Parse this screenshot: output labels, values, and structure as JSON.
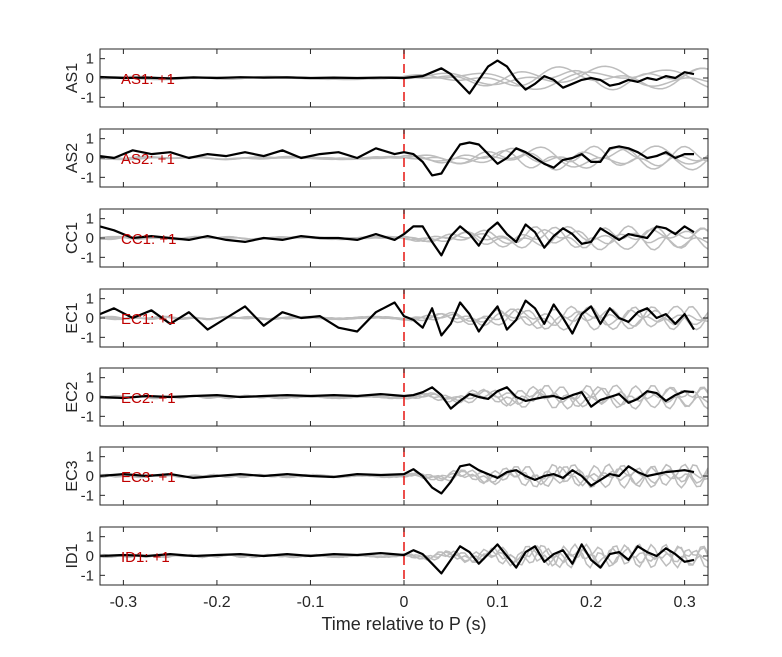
{
  "chart_data": {
    "type": "line",
    "xlabel": "Time relative to P (s)",
    "xlim": [
      -0.325,
      0.325
    ],
    "ylim": [
      -1.5,
      1.5
    ],
    "xticks": [
      -0.3,
      -0.2,
      -0.1,
      0,
      0.1,
      0.2,
      0.3
    ],
    "xtick_labels": [
      "-0.3",
      "-0.2",
      "-0.1",
      "0",
      "0.1",
      "0.2",
      "0.3"
    ],
    "yticks": [
      1,
      0,
      -1
    ],
    "ytick_labels": [
      "1",
      "0",
      "-1"
    ],
    "reference_line": {
      "x": 0,
      "style": "dashed",
      "color": "#e8231f"
    },
    "colors": {
      "main_trace": "#000000",
      "reference_traces": "#bdbdbd",
      "annotation": "#c00000",
      "p_marker": "#e8231f"
    },
    "panels": [
      {
        "ylabel": "AS1",
        "annotation": "AS1: +1",
        "x": [
          -0.325,
          -0.3,
          -0.275,
          -0.25,
          -0.225,
          -0.2,
          -0.175,
          -0.15,
          -0.125,
          -0.1,
          -0.075,
          -0.05,
          -0.025,
          0,
          0.01,
          0.02,
          0.03,
          0.04,
          0.05,
          0.06,
          0.07,
          0.08,
          0.09,
          0.1,
          0.11,
          0.12,
          0.13,
          0.14,
          0.15,
          0.16,
          0.17,
          0.18,
          0.19,
          0.2,
          0.21,
          0.22,
          0.23,
          0.24,
          0.25,
          0.26,
          0.27,
          0.28,
          0.29,
          0.3,
          0.31
        ],
        "y": [
          0.05,
          0.0,
          0.02,
          -0.02,
          0.03,
          0.0,
          0.04,
          0.02,
          0.03,
          0.0,
          0.02,
          0.0,
          0.02,
          0.0,
          0.05,
          0.1,
          0.3,
          0.5,
          0.2,
          -0.3,
          -0.8,
          -0.1,
          0.6,
          0.9,
          0.6,
          -0.1,
          -0.6,
          -0.3,
          0.1,
          -0.1,
          -0.5,
          -0.3,
          -0.1,
          0.0,
          -0.1,
          -0.4,
          -0.3,
          -0.1,
          -0.2,
          0.0,
          -0.1,
          0.1,
          0.0,
          0.3,
          0.2
        ]
      },
      {
        "ylabel": "AS2",
        "annotation": "AS2: +1",
        "x": [
          -0.325,
          -0.31,
          -0.29,
          -0.27,
          -0.25,
          -0.23,
          -0.21,
          -0.19,
          -0.17,
          -0.15,
          -0.13,
          -0.11,
          -0.09,
          -0.07,
          -0.05,
          -0.03,
          -0.01,
          0.0,
          0.01,
          0.02,
          0.03,
          0.04,
          0.05,
          0.06,
          0.07,
          0.08,
          0.09,
          0.1,
          0.11,
          0.12,
          0.13,
          0.14,
          0.15,
          0.16,
          0.17,
          0.18,
          0.19,
          0.2,
          0.21,
          0.22,
          0.23,
          0.24,
          0.25,
          0.26,
          0.27,
          0.28,
          0.29,
          0.3,
          0.31
        ],
        "y": [
          0.1,
          0.0,
          0.4,
          0.2,
          0.3,
          0.0,
          0.2,
          0.1,
          0.3,
          0.1,
          0.4,
          0.0,
          0.2,
          0.3,
          0.0,
          0.5,
          0.2,
          0.3,
          0.2,
          -0.2,
          -0.9,
          -0.8,
          0.0,
          0.7,
          0.8,
          0.7,
          0.2,
          -0.3,
          0.0,
          0.5,
          0.3,
          0.0,
          -0.3,
          -0.5,
          -0.1,
          0.0,
          0.2,
          -0.2,
          -0.2,
          0.5,
          0.6,
          0.5,
          0.3,
          0.0,
          0.1,
          0.3,
          0.0,
          0.2,
          0.2
        ]
      },
      {
        "ylabel": "CC1",
        "annotation": "CC1: +1",
        "x": [
          -0.325,
          -0.31,
          -0.29,
          -0.27,
          -0.25,
          -0.23,
          -0.21,
          -0.19,
          -0.17,
          -0.15,
          -0.13,
          -0.11,
          -0.09,
          -0.07,
          -0.05,
          -0.03,
          -0.01,
          0.0,
          0.01,
          0.02,
          0.03,
          0.04,
          0.05,
          0.06,
          0.07,
          0.08,
          0.09,
          0.1,
          0.11,
          0.12,
          0.13,
          0.14,
          0.15,
          0.16,
          0.17,
          0.18,
          0.19,
          0.2,
          0.21,
          0.22,
          0.23,
          0.24,
          0.25,
          0.26,
          0.27,
          0.28,
          0.29,
          0.3,
          0.31
        ],
        "y": [
          0.6,
          0.4,
          0.0,
          0.1,
          0.0,
          -0.1,
          0.1,
          -0.1,
          -0.2,
          0.0,
          -0.1,
          0.1,
          0.0,
          0.0,
          -0.1,
          0.2,
          -0.1,
          0.2,
          0.6,
          0.6,
          -0.2,
          -0.9,
          0.1,
          0.6,
          0.2,
          -0.4,
          0.4,
          0.8,
          0.2,
          -0.2,
          0.7,
          0.3,
          -0.5,
          0.1,
          0.5,
          0.2,
          -0.3,
          -0.2,
          0.5,
          0.2,
          -0.1,
          0.2,
          0.1,
          0.0,
          0.6,
          0.5,
          0.2,
          0.6,
          0.3
        ]
      },
      {
        "ylabel": "EC1",
        "annotation": "EC1: +1",
        "x": [
          -0.325,
          -0.31,
          -0.29,
          -0.27,
          -0.25,
          -0.23,
          -0.21,
          -0.19,
          -0.17,
          -0.15,
          -0.13,
          -0.11,
          -0.09,
          -0.07,
          -0.05,
          -0.03,
          -0.01,
          0.0,
          0.01,
          0.02,
          0.03,
          0.04,
          0.05,
          0.06,
          0.07,
          0.08,
          0.09,
          0.1,
          0.11,
          0.12,
          0.13,
          0.14,
          0.15,
          0.16,
          0.17,
          0.18,
          0.19,
          0.2,
          0.21,
          0.22,
          0.23,
          0.24,
          0.25,
          0.26,
          0.27,
          0.28,
          0.29,
          0.3,
          0.31
        ],
        "y": [
          0.2,
          0.5,
          0.0,
          0.4,
          -0.3,
          0.3,
          -0.6,
          0.0,
          0.6,
          -0.4,
          0.3,
          0.0,
          0.1,
          -0.5,
          -0.7,
          0.3,
          0.8,
          0.1,
          -0.1,
          -0.5,
          0.5,
          -0.9,
          -0.3,
          0.8,
          0.2,
          -0.7,
          0.0,
          0.6,
          -0.6,
          -0.1,
          0.9,
          0.5,
          -0.3,
          0.7,
          0.0,
          -0.8,
          0.2,
          0.6,
          -0.3,
          0.5,
          0.0,
          -0.2,
          0.3,
          0.5,
          0.0,
          0.2,
          -0.3,
          0.2,
          -0.6
        ]
      },
      {
        "ylabel": "EC2",
        "annotation": "EC2: +1",
        "x": [
          -0.325,
          -0.3,
          -0.275,
          -0.25,
          -0.225,
          -0.2,
          -0.175,
          -0.15,
          -0.125,
          -0.1,
          -0.075,
          -0.05,
          -0.025,
          0,
          0.01,
          0.02,
          0.03,
          0.04,
          0.05,
          0.06,
          0.07,
          0.08,
          0.09,
          0.1,
          0.11,
          0.12,
          0.13,
          0.14,
          0.15,
          0.16,
          0.17,
          0.18,
          0.19,
          0.2,
          0.21,
          0.22,
          0.23,
          0.24,
          0.25,
          0.26,
          0.27,
          0.28,
          0.29,
          0.3,
          0.31
        ],
        "y": [
          0.0,
          -0.05,
          0.05,
          0.0,
          0.05,
          0.1,
          0.0,
          0.05,
          0.1,
          0.05,
          0.1,
          0.05,
          0.15,
          0.05,
          0.1,
          0.25,
          0.5,
          0.1,
          -0.6,
          -0.2,
          0.15,
          0.0,
          -0.1,
          0.3,
          0.5,
          0.0,
          -0.2,
          -0.1,
          0.0,
          0.05,
          -0.1,
          0.1,
          0.25,
          -0.5,
          -0.15,
          0.0,
          0.15,
          -0.3,
          -0.1,
          0.3,
          0.2,
          -0.2,
          0.1,
          0.3,
          0.25
        ]
      },
      {
        "ylabel": "EC3",
        "annotation": "EC3: +1",
        "x": [
          -0.325,
          -0.3,
          -0.275,
          -0.25,
          -0.225,
          -0.2,
          -0.175,
          -0.15,
          -0.125,
          -0.1,
          -0.075,
          -0.05,
          -0.025,
          0,
          0.01,
          0.02,
          0.03,
          0.04,
          0.05,
          0.06,
          0.07,
          0.08,
          0.09,
          0.1,
          0.11,
          0.12,
          0.13,
          0.14,
          0.15,
          0.16,
          0.17,
          0.18,
          0.19,
          0.2,
          0.21,
          0.22,
          0.23,
          0.24,
          0.25,
          0.26,
          0.27,
          0.28,
          0.29,
          0.3,
          0.31
        ],
        "y": [
          0.0,
          0.1,
          0.0,
          0.1,
          -0.1,
          0.0,
          0.1,
          0.0,
          0.1,
          0.0,
          -0.05,
          0.1,
          0.05,
          0.1,
          0.35,
          0.0,
          -0.6,
          -0.9,
          -0.3,
          0.5,
          0.6,
          0.3,
          0.1,
          -0.1,
          0.2,
          0.3,
          0.0,
          -0.2,
          0.0,
          0.1,
          -0.1,
          0.3,
          0.0,
          -0.5,
          -0.2,
          0.1,
          0.0,
          0.5,
          0.2,
          0.0,
          0.1,
          0.2,
          0.25,
          0.3,
          0.2
        ]
      },
      {
        "ylabel": "ID1",
        "annotation": "ID1: +1",
        "x": [
          -0.325,
          -0.3,
          -0.275,
          -0.25,
          -0.225,
          -0.2,
          -0.175,
          -0.15,
          -0.125,
          -0.1,
          -0.075,
          -0.05,
          -0.025,
          0,
          0.01,
          0.02,
          0.03,
          0.04,
          0.05,
          0.06,
          0.07,
          0.08,
          0.09,
          0.1,
          0.11,
          0.12,
          0.13,
          0.14,
          0.15,
          0.16,
          0.17,
          0.18,
          0.19,
          0.2,
          0.21,
          0.22,
          0.23,
          0.24,
          0.25,
          0.26,
          0.27,
          0.28,
          0.29,
          0.3,
          0.31
        ],
        "y": [
          0.0,
          0.05,
          0.0,
          0.1,
          0.0,
          0.05,
          0.1,
          0.0,
          0.1,
          0.0,
          0.1,
          0.05,
          0.15,
          0.05,
          0.3,
          0.1,
          -0.4,
          -0.9,
          -0.2,
          0.5,
          0.2,
          -0.4,
          0.1,
          0.6,
          0.0,
          -0.6,
          0.2,
          0.5,
          -0.3,
          0.1,
          0.3,
          -0.4,
          0.6,
          -0.2,
          -0.6,
          0.1,
          0.2,
          -0.2,
          0.5,
          0.2,
          0.0,
          0.4,
          0.1,
          -0.3,
          -0.2
        ]
      }
    ]
  }
}
